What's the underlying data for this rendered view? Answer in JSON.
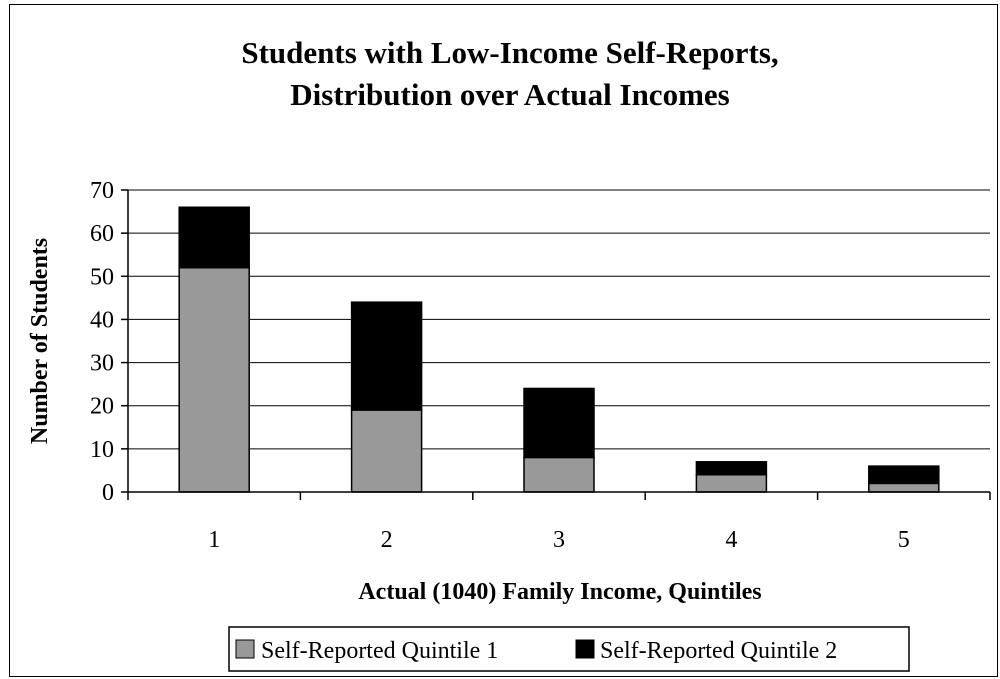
{
  "chart_data": {
    "type": "bar",
    "stacked": true,
    "title": "Students with Low-Income Self-Reports, Distribution over Actual Incomes",
    "title_lines": [
      "Students with Low-Income Self-Reports,",
      "Distribution over Actual Incomes"
    ],
    "xlabel": "Actual (1040) Family Income, Quintiles",
    "ylabel": "Number of Students",
    "categories": [
      "1",
      "2",
      "3",
      "4",
      "5"
    ],
    "ylim": [
      0,
      70
    ],
    "yticks": [
      0,
      10,
      20,
      30,
      40,
      50,
      60,
      70
    ],
    "grid": true,
    "legend_position": "bottom",
    "series": [
      {
        "name": "Self-Reported Quintile 1",
        "values": [
          52,
          19,
          8,
          4,
          2
        ],
        "color": "#999999"
      },
      {
        "name": "Self-Reported Quintile 2",
        "values": [
          14,
          25,
          16,
          3,
          4
        ],
        "color": "#000000"
      }
    ]
  }
}
